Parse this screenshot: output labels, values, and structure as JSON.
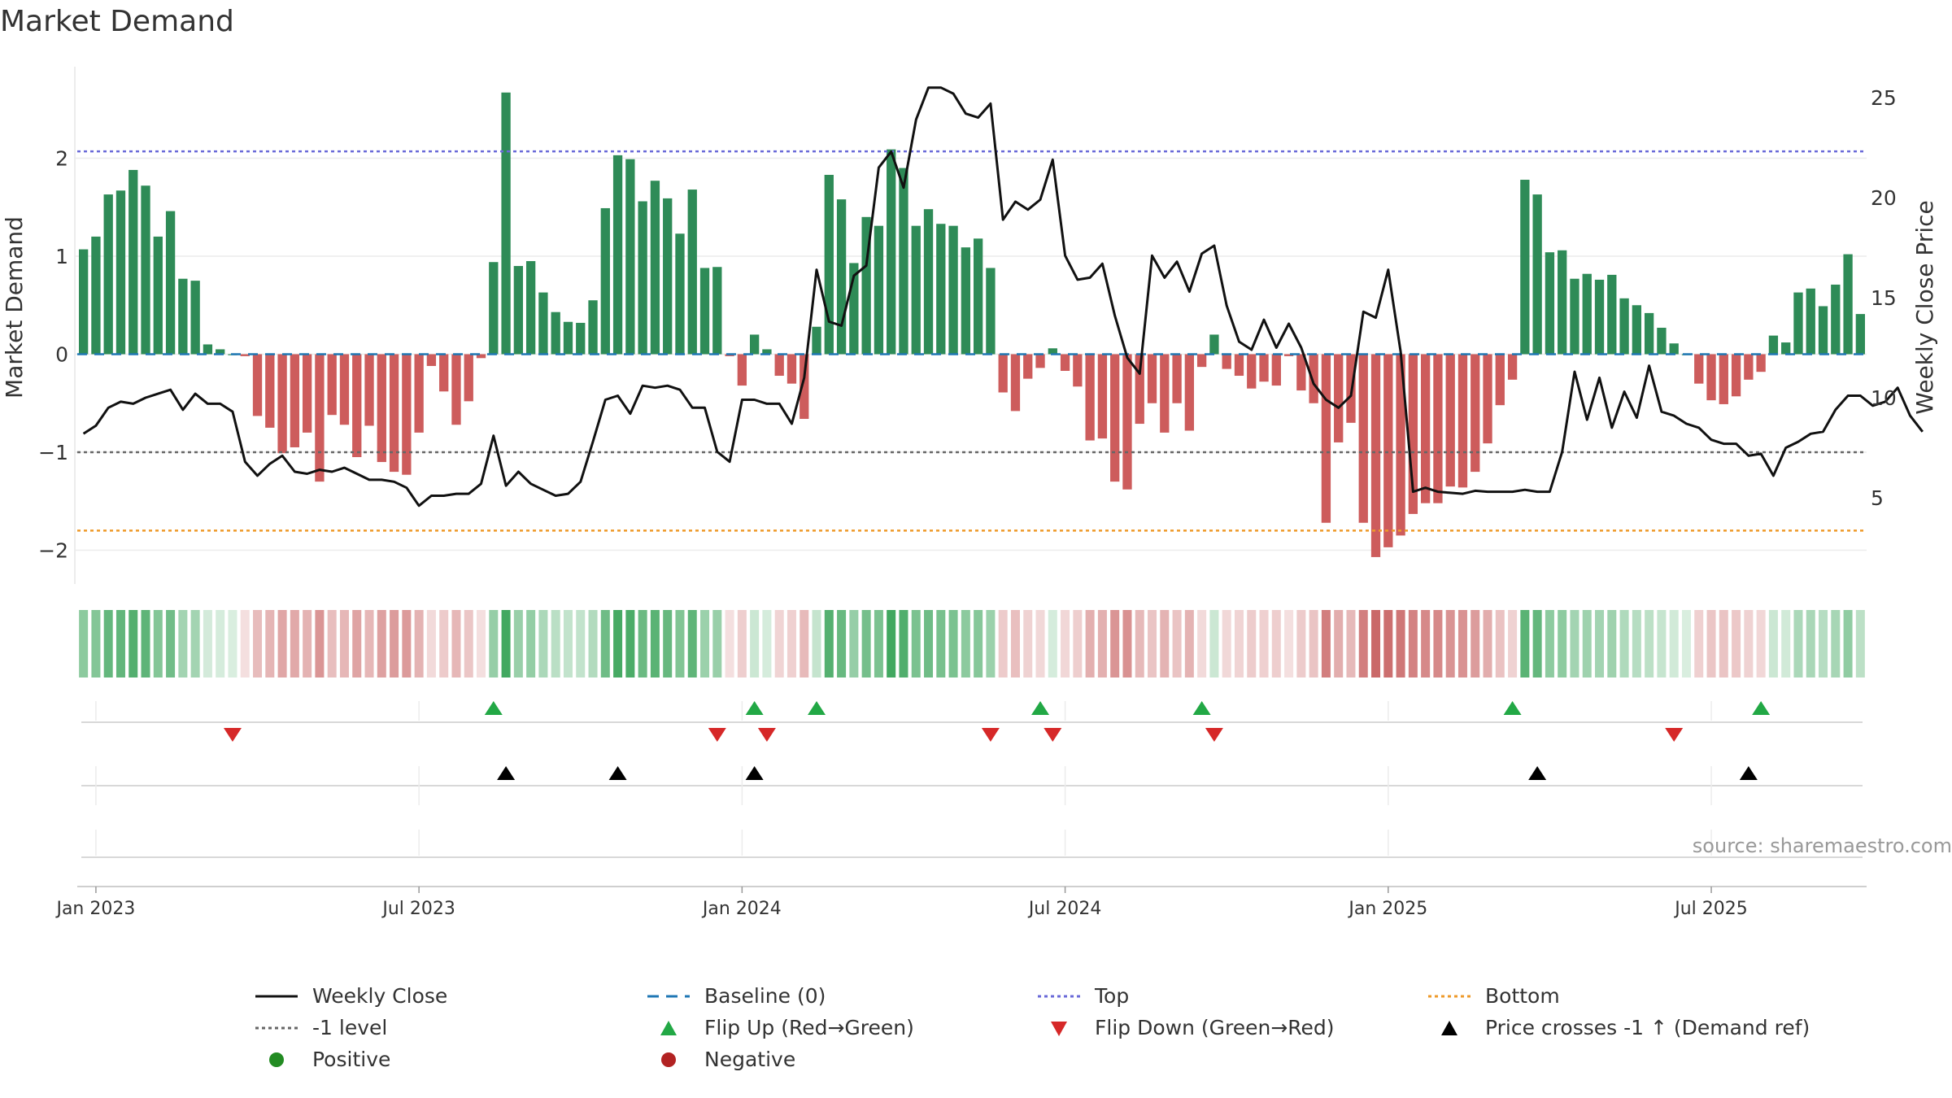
{
  "chart_data": {
    "type": "bar",
    "title": "Market Demand",
    "ylabel_left": "Market Demand",
    "ylabel_right": "Weekly Close Price",
    "source": "source: sharemaestro.com",
    "ylim_left": [
      -2.35,
      2.9
    ],
    "ylim_right": [
      1.5,
      27.5
    ],
    "left_ticks": [
      "2",
      "1",
      "0",
      "−1",
      "−2"
    ],
    "left_tick_values": [
      2,
      1,
      0,
      -1,
      -2
    ],
    "right_ticks": [
      "25",
      "20",
      "15",
      "10",
      "5"
    ],
    "right_tick_values": [
      25,
      20,
      15,
      10,
      5
    ],
    "x_tick_labels": [
      "Jan 2023",
      "Jul 2023",
      "Jan 2024",
      "Jul 2024",
      "Jan 2025",
      "Jul 2025"
    ],
    "x_tick_weeks": [
      1.5,
      27.5,
      53.5,
      79.5,
      105.5,
      131.5
    ],
    "reference_levels": {
      "top": 2.07,
      "bottom": -1.8,
      "minus_one": -1,
      "baseline": 0
    },
    "demand": [
      1.07,
      1.2,
      1.63,
      1.67,
      1.88,
      1.72,
      1.2,
      1.46,
      0.77,
      0.75,
      0.1,
      0.05,
      0,
      -0.02,
      -0.63,
      -0.75,
      -1.01,
      -0.95,
      -0.8,
      -1.3,
      -0.62,
      -0.72,
      -1.05,
      -0.73,
      -1.1,
      -1.2,
      -1.23,
      -0.8,
      -0.12,
      -0.38,
      -0.72,
      -0.48,
      -0.04,
      0.94,
      2.67,
      0.9,
      0.95,
      0.63,
      0.43,
      0.33,
      0.32,
      0.55,
      1.49,
      2.03,
      1.99,
      1.56,
      1.77,
      1.59,
      1.23,
      1.68,
      0.88,
      0.89,
      -0.02,
      -0.32,
      0.2,
      0.05,
      -0.22,
      -0.3,
      -0.66,
      0.28,
      1.83,
      1.58,
      0.93,
      1.4,
      1.31,
      2.09,
      1.9,
      1.31,
      1.48,
      1.33,
      1.31,
      1.09,
      1.18,
      0.88,
      -0.39,
      -0.58,
      -0.25,
      -0.14,
      0.06,
      -0.17,
      -0.33,
      -0.88,
      -0.86,
      -1.3,
      -1.38,
      -0.71,
      -0.5,
      -0.8,
      -0.5,
      -0.78,
      -0.13,
      0.2,
      -0.15,
      -0.22,
      -0.35,
      -0.28,
      -0.32,
      -0.02,
      -0.37,
      -0.5,
      -1.72,
      -0.9,
      -0.7,
      -1.72,
      -2.07,
      -1.97,
      -1.85,
      -1.63,
      -1.52,
      -1.52,
      -1.35,
      -1.36,
      -1.2,
      -0.91,
      -0.52,
      -0.26,
      1.78,
      1.63,
      1.04,
      1.06,
      0.77,
      0.82,
      0.76,
      0.81,
      0.57,
      0.5,
      0.42,
      0.27,
      0.11,
      0,
      -0.3,
      -0.47,
      -0.51,
      -0.43,
      -0.26,
      -0.18,
      0.19,
      0.12,
      0.63,
      0.67,
      0.49,
      0.71,
      1.02,
      0.41
    ],
    "weekly_close": [
      8.2,
      8.6,
      9.5,
      9.8,
      9.7,
      10,
      10.2,
      10.4,
      9.4,
      10.2,
      9.7,
      9.7,
      9.3,
      6.8,
      6.1,
      6.7,
      7.1,
      6.3,
      6.2,
      6.4,
      6.3,
      6.5,
      6.2,
      5.9,
      5.9,
      5.8,
      5.5,
      4.6,
      5.1,
      5.1,
      5.2,
      5.2,
      5.7,
      8.1,
      5.6,
      6.3,
      5.7,
      5.4,
      5.1,
      5.2,
      5.8,
      7.8,
      9.9,
      10.1,
      9.2,
      10.6,
      10.5,
      10.6,
      10.4,
      9.5,
      9.5,
      7.3,
      6.8,
      9.9,
      9.9,
      9.7,
      9.7,
      8.7,
      11,
      16.4,
      13.8,
      13.6,
      16.1,
      16.6,
      21.5,
      22.3,
      20.5,
      23.9,
      25.5,
      25.5,
      25.2,
      24.2,
      24.0,
      24.7,
      18.9,
      19.8,
      19.4,
      19.9,
      21.9,
      17.1,
      15.9,
      16,
      16.7,
      14.1,
      12,
      11.2,
      17.1,
      16,
      16.8,
      15.3,
      17.2,
      17.6,
      14.6,
      12.8,
      12.4,
      13.9,
      12.5,
      13.7,
      12.5,
      10.7,
      9.9,
      9.5,
      10.1,
      14.3,
      14,
      16.4,
      12.3,
      5.3,
      5.5,
      5.3,
      5.25,
      5.2,
      5.35,
      5.3,
      5.3,
      5.3,
      5.4,
      5.3,
      5.3,
      7.3,
      11.3,
      8.9,
      11,
      8.5,
      10.3,
      9,
      11.6,
      9.3,
      9.1,
      8.7,
      8.5,
      7.9,
      7.7,
      7.7,
      7.1,
      7.2,
      6.1,
      7.5,
      7.8,
      8.2,
      8.3,
      9.4,
      10.1,
      10.1,
      9.6,
      9.8,
      10.5,
      9.1,
      8.3
    ],
    "flip_up_weeks": [
      33,
      54,
      59,
      77,
      90,
      115,
      135
    ],
    "flip_down_weeks": [
      12,
      51,
      55,
      73,
      78,
      91,
      128
    ],
    "price_cross_weeks": [
      34,
      43,
      54,
      117,
      134
    ],
    "legend": [
      {
        "label": "Weekly Close",
        "kind": "line-black"
      },
      {
        "label": "Baseline (0)",
        "kind": "dash-blue"
      },
      {
        "label": "Top",
        "kind": "dot-purple"
      },
      {
        "label": "Bottom",
        "kind": "dot-orange"
      },
      {
        "label": "-1 level",
        "kind": "dot-gray"
      },
      {
        "label": "Flip Up (Red→Green)",
        "kind": "tri-up-green"
      },
      {
        "label": "Flip Down (Green→Red)",
        "kind": "tri-down-red"
      },
      {
        "label": "Price crosses -1 ↑ (Demand ref)",
        "kind": "tri-up-black"
      },
      {
        "label": "Positive",
        "kind": "dot-green"
      },
      {
        "label": "Negative",
        "kind": "dot-red"
      }
    ]
  },
  "colors": {
    "positive": "#2e8b57",
    "negative": "#cd5c5c",
    "close_line": "#111111",
    "baseline": "#1f77b4",
    "top": "#6a6ad8",
    "bottom": "#ee9a2a",
    "minus_one": "#666666",
    "flip_up": "#22a845",
    "flip_down": "#d62828",
    "price_cross": "#000000",
    "legend_positive": "#228b22",
    "legend_negative": "#b22222"
  }
}
